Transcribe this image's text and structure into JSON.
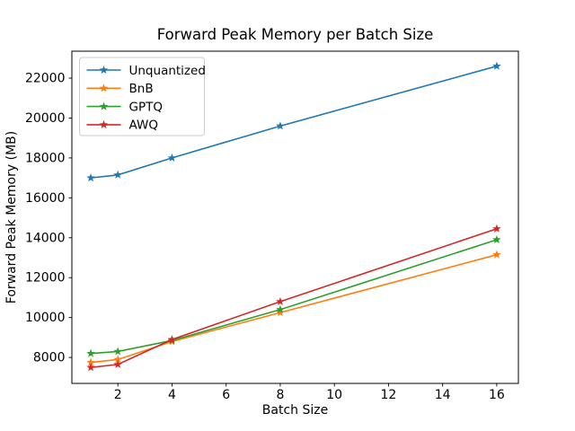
{
  "chart_data": {
    "type": "line",
    "title": "Forward Peak Memory per Batch Size",
    "xlabel": "Batch Size",
    "ylabel": "Forward Peak Memory (MB)",
    "x": [
      1,
      2,
      4,
      8,
      16
    ],
    "series": [
      {
        "name": "Unquantized",
        "color": "#1f77b4",
        "values": [
          17000,
          17150,
          18000,
          19600,
          22600
        ]
      },
      {
        "name": "BnB",
        "color": "#ff7f0e",
        "values": [
          7750,
          7900,
          8800,
          10250,
          13150
        ]
      },
      {
        "name": "GPTQ",
        "color": "#2ca02c",
        "values": [
          8200,
          8300,
          8850,
          10400,
          13900
        ]
      },
      {
        "name": "AWQ",
        "color": "#d62728",
        "values": [
          7500,
          7650,
          8900,
          10800,
          14450
        ]
      }
    ],
    "xticks": [
      2,
      4,
      6,
      8,
      10,
      12,
      14,
      16
    ],
    "yticks": [
      8000,
      10000,
      12000,
      14000,
      16000,
      18000,
      20000,
      22000
    ],
    "xlim": [
      0.3,
      16.8
    ],
    "ylim": [
      6700,
      23350
    ],
    "marker": "star",
    "grid": false,
    "legend_position": "upper left",
    "axis_color": "#000000",
    "background_color": "#ffffff",
    "legend_border_color": "#cccccc"
  }
}
